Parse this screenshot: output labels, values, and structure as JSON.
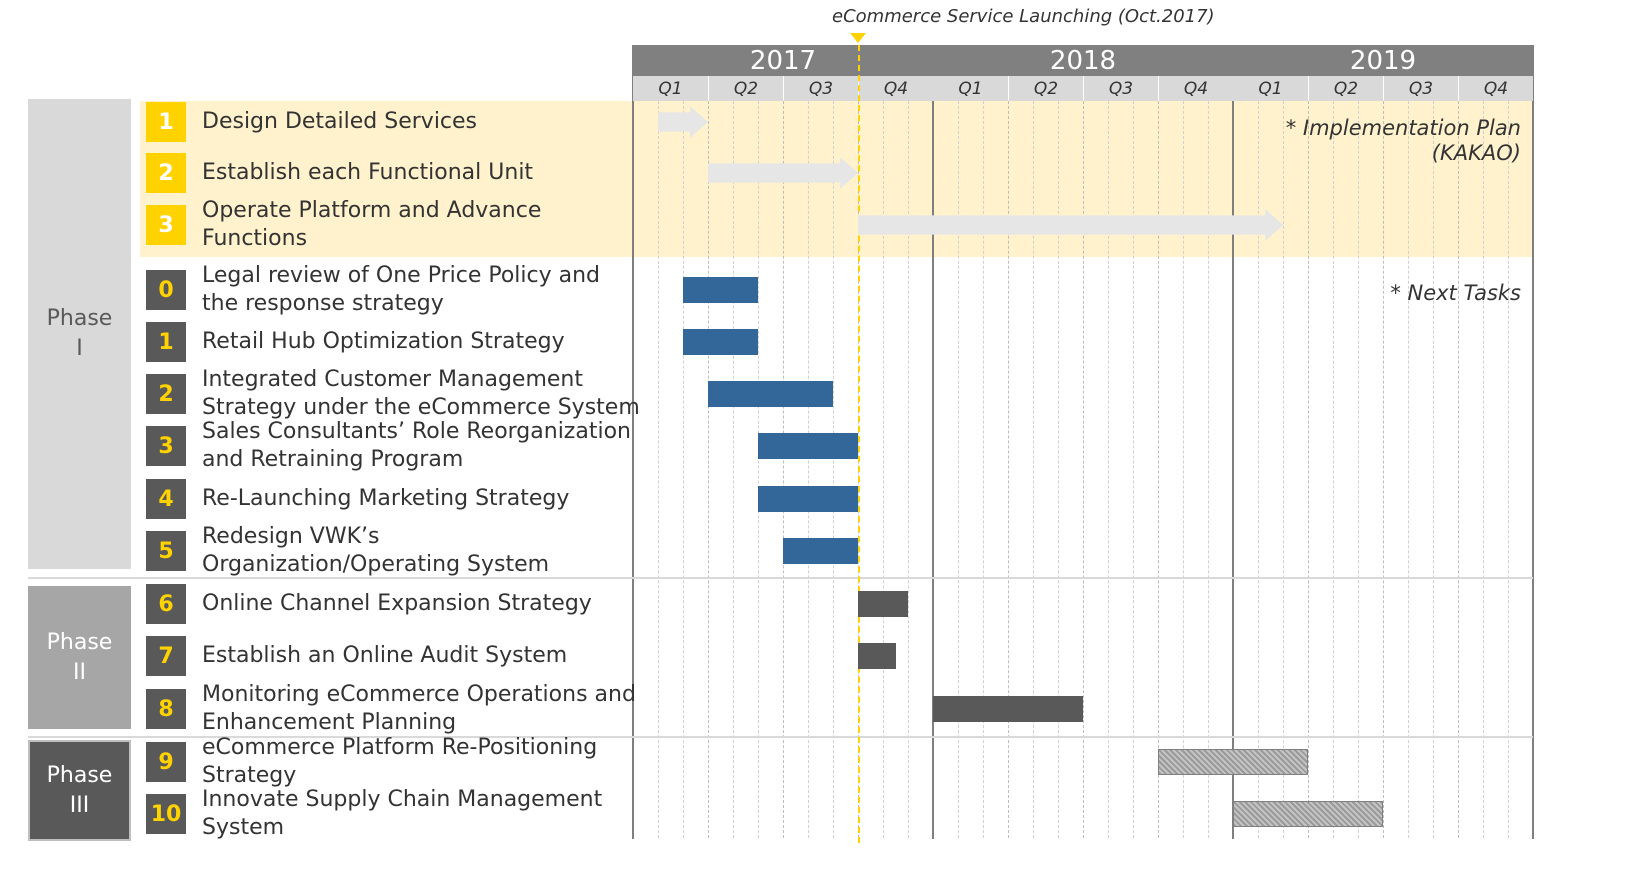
{
  "launch": {
    "label": "eCommerce Service Launching (Oct.2017)",
    "date_quarter": 3.0
  },
  "years": [
    "2017",
    "2018",
    "2019"
  ],
  "quarters": [
    "Q1",
    "Q2",
    "Q3",
    "Q4",
    "Q1",
    "Q2",
    "Q3",
    "Q4",
    "Q1",
    "Q2",
    "Q3",
    "Q4"
  ],
  "notes": {
    "implementation_line1": "* Implementation Plan",
    "implementation_line2": "(KAKAO)",
    "next_tasks": "* Next Tasks"
  },
  "phases": [
    {
      "label_line1": "Phase",
      "label_line2": "I"
    },
    {
      "label_line1": "Phase",
      "label_line2": "II"
    },
    {
      "label_line1": "Phase",
      "label_line2": "III"
    }
  ],
  "colors": {
    "implementation_band": "#fff2cc",
    "implementation_arrow": "#e6e6e6",
    "next_task_bar": "#336699",
    "phase2_bar": "#595959",
    "phase3_bar": "hatched-gray",
    "launch_line": "#ffd200"
  },
  "chart_data": {
    "type": "gantt",
    "x_unit": "quarter index from start of 2017 (0 = start of Q1 2017)",
    "xlim": [
      0,
      12
    ],
    "groups": [
      {
        "name": "Implementation Plan (KAKAO)",
        "tasks": [
          {
            "num": "1",
            "lines": [
              "Design Detailed Services"
            ],
            "start": 0.33,
            "end": 1.0
          },
          {
            "num": "2",
            "lines": [
              "Establish each Functional Unit"
            ],
            "start": 1.0,
            "end": 3.0
          },
          {
            "num": "3",
            "lines": [
              "Operate Platform and Advance",
              "Functions"
            ],
            "start": 3.0,
            "end": 8.67
          }
        ]
      },
      {
        "name": "Next Tasks",
        "tasks": [
          {
            "num": "0",
            "lines": [
              "Legal review of One Price Policy and",
              "the response strategy"
            ],
            "start": 0.67,
            "end": 1.67
          },
          {
            "num": "1",
            "lines": [
              "Retail Hub Optimization Strategy"
            ],
            "start": 0.67,
            "end": 1.67
          },
          {
            "num": "2",
            "lines": [
              "Integrated Customer Management",
              "Strategy under the eCommerce System"
            ],
            "start": 1.0,
            "end": 2.67
          },
          {
            "num": "3",
            "lines": [
              "Sales Consultants’ Role Reorganization",
              "and Retraining Program"
            ],
            "start": 1.67,
            "end": 3.0
          },
          {
            "num": "4",
            "lines": [
              "Re-Launching Marketing Strategy"
            ],
            "start": 1.67,
            "end": 3.0
          },
          {
            "num": "5",
            "lines": [
              "Redesign VWK’s",
              "Organization/Operating System"
            ],
            "start": 2.0,
            "end": 3.0
          }
        ]
      },
      {
        "name": "Phase II",
        "tasks": [
          {
            "num": "6",
            "lines": [
              "Online Channel Expansion Strategy"
            ],
            "start": 3.0,
            "end": 3.67
          },
          {
            "num": "7",
            "lines": [
              "Establish an Online Audit System"
            ],
            "start": 3.0,
            "end": 3.5
          },
          {
            "num": "8",
            "lines": [
              "Monitoring eCommerce Operations and",
              "Enhancement Planning"
            ],
            "start": 4.0,
            "end": 6.0
          }
        ]
      },
      {
        "name": "Phase III",
        "tasks": [
          {
            "num": "9",
            "lines": [
              "eCommerce Platform Re-Positioning",
              "Strategy"
            ],
            "start": 7.0,
            "end": 9.0
          },
          {
            "num": "10",
            "lines": [
              "Innovate Supply Chain Management",
              "System"
            ],
            "start": 8.0,
            "end": 10.0
          }
        ]
      }
    ]
  }
}
